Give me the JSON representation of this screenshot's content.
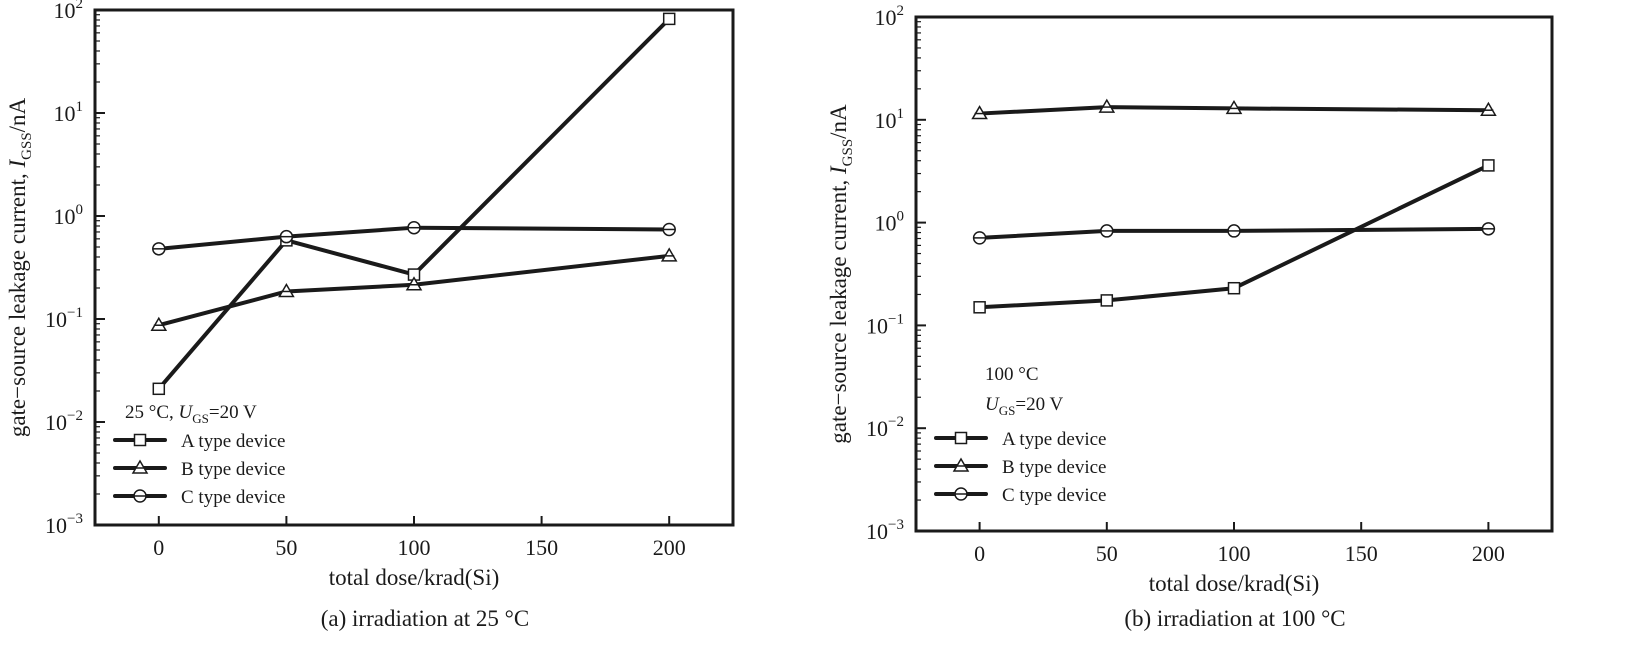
{
  "chart_data": [
    {
      "type": "line",
      "caption": "(a) irradiation at 25 °C",
      "xlabel": "total dose/krad(Si)",
      "ylabel": {
        "prefix": "gate−source leakage current, ",
        "symbol": "I",
        "subscript": "GSS",
        "suffix": "/nA"
      },
      "xlim": [
        -25,
        225
      ],
      "xticks": [
        0,
        50,
        100,
        150,
        200
      ],
      "yscale": "log",
      "ylim": [
        0.001,
        100
      ],
      "yticks": [
        {
          "value": 0.001,
          "base": "10",
          "exp": "−3"
        },
        {
          "value": 0.01,
          "base": "10",
          "exp": "−2"
        },
        {
          "value": 0.1,
          "base": "10",
          "exp": "−1"
        },
        {
          "value": 1,
          "base": "10",
          "exp": "0"
        },
        {
          "value": 10,
          "base": "10",
          "exp": "1"
        },
        {
          "value": 100,
          "base": "10",
          "exp": "2"
        }
      ],
      "annotation_lines": [
        [
          {
            "text": "25 °C, "
          },
          {
            "text": "U",
            "italic": true
          },
          {
            "text": "GS",
            "sub": true
          },
          {
            "text": "=20 V"
          }
        ]
      ],
      "legend_position": "lower-left",
      "x": [
        0,
        50,
        100,
        200
      ],
      "series": [
        {
          "name": "A type device",
          "marker": "square",
          "values": [
            0.021,
            0.58,
            0.27,
            82
          ]
        },
        {
          "name": "B type device",
          "marker": "triangle",
          "values": [
            0.087,
            0.185,
            0.215,
            0.41
          ]
        },
        {
          "name": "C type device",
          "marker": "circle",
          "values": [
            0.48,
            0.63,
            0.77,
            0.74
          ]
        }
      ]
    },
    {
      "type": "line",
      "caption": "(b) irradiation at 100 °C",
      "xlabel": "total dose/krad(Si)",
      "ylabel": {
        "prefix": "gate−source leakage current, ",
        "symbol": "I",
        "subscript": "GSS",
        "suffix": "/nA"
      },
      "xlim": [
        -25,
        225
      ],
      "xticks": [
        0,
        50,
        100,
        150,
        200
      ],
      "yscale": "log",
      "ylim": [
        0.001,
        100
      ],
      "yticks": [
        {
          "value": 0.001,
          "base": "10",
          "exp": "−3"
        },
        {
          "value": 0.01,
          "base": "10",
          "exp": "−2"
        },
        {
          "value": 0.1,
          "base": "10",
          "exp": "−1"
        },
        {
          "value": 1,
          "base": "10",
          "exp": "0"
        },
        {
          "value": 10,
          "base": "10",
          "exp": "1"
        },
        {
          "value": 100,
          "base": "10",
          "exp": "2"
        }
      ],
      "annotation_lines": [
        [
          {
            "text": "100 °C"
          }
        ],
        [
          {
            "text": "U",
            "italic": true
          },
          {
            "text": "GS",
            "sub": true
          },
          {
            "text": "=20 V"
          }
        ]
      ],
      "legend_position": "lower-left",
      "x": [
        0,
        50,
        100,
        200
      ],
      "series": [
        {
          "name": "A type device",
          "marker": "square",
          "values": [
            0.15,
            0.175,
            0.23,
            3.6
          ]
        },
        {
          "name": "B type device",
          "marker": "triangle",
          "values": [
            11.5,
            13.3,
            12.9,
            12.4
          ]
        },
        {
          "name": "C type device",
          "marker": "circle",
          "values": [
            0.71,
            0.83,
            0.83,
            0.87
          ]
        }
      ]
    }
  ]
}
